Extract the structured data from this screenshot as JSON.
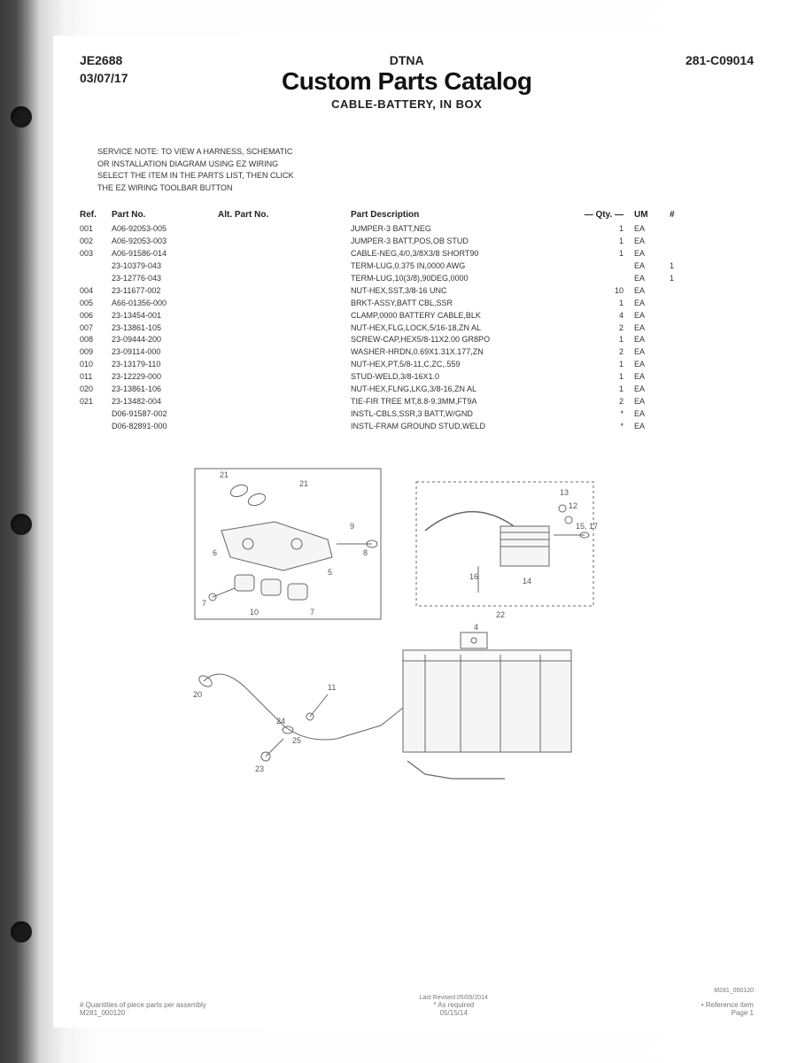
{
  "header": {
    "code_left_top": "JE2688",
    "code_left_bottom": "03/07/17",
    "brand": "DTNA",
    "title": "Custom Parts Catalog",
    "subtitle": "CABLE-BATTERY, IN BOX",
    "code_right": "281-C09014"
  },
  "service_note": [
    "SERVICE NOTE: TO VIEW A HARNESS, SCHEMATIC",
    "OR INSTALLATION DIAGRAM USING EZ WIRING",
    "SELECT THE ITEM IN THE PARTS LIST, THEN CLICK",
    "THE EZ WIRING TOOLBAR BUTTON"
  ],
  "columns": {
    "ref": "Ref.",
    "part": "Part No.",
    "alt": "Alt. Part No.",
    "desc": "Part Description",
    "qty": "— Qty. —",
    "um": "UM",
    "num": "#"
  },
  "rows": [
    {
      "ref": "001",
      "part": "A06-92053-005",
      "desc": "JUMPER-3 BATT,NEG",
      "qty": "1",
      "um": "EA",
      "num": ""
    },
    {
      "ref": "002",
      "part": "A06-92053-003",
      "desc": "JUMPER-3 BATT,POS,OB STUD",
      "qty": "1",
      "um": "EA",
      "num": ""
    },
    {
      "ref": "003",
      "part": "A06-91586-014",
      "desc": "CABLE-NEG,4/0,3/8X3/8 SHORT90",
      "qty": "1",
      "um": "EA",
      "num": ""
    },
    {
      "ref": "",
      "part": "23-10379-043",
      "desc": "TERM-LUG,0.375 IN,0000 AWG",
      "qty": "",
      "um": "EA",
      "num": "1"
    },
    {
      "ref": "",
      "part": "23-12776-043",
      "desc": "TERM-LUG,10(3/8),90DEG,0000",
      "qty": "",
      "um": "EA",
      "num": "1"
    },
    {
      "ref": "004",
      "part": "23-11677-002",
      "desc": "NUT-HEX,SST,3/8-16 UNC",
      "qty": "10",
      "um": "EA",
      "num": ""
    },
    {
      "ref": "005",
      "part": "A66-01356-000",
      "desc": "BRKT-ASSY,BATT CBL,SSR",
      "qty": "1",
      "um": "EA",
      "num": ""
    },
    {
      "ref": "006",
      "part": "23-13454-001",
      "desc": "CLAMP,0000 BATTERY CABLE,BLK",
      "qty": "4",
      "um": "EA",
      "num": ""
    },
    {
      "ref": "007",
      "part": "23-13861-105",
      "desc": "NUT-HEX,FLG,LOCK,5/16-18,ZN AL",
      "qty": "2",
      "um": "EA",
      "num": ""
    },
    {
      "ref": "008",
      "part": "23-09444-200",
      "desc": "SCREW-CAP,HEX5/8-11X2.00 GR8PO",
      "qty": "1",
      "um": "EA",
      "num": ""
    },
    {
      "ref": "009",
      "part": "23-09114-000",
      "desc": "WASHER-HRDN,0.69X1.31X.177,ZN",
      "qty": "2",
      "um": "EA",
      "num": ""
    },
    {
      "ref": "010",
      "part": "23-13179-110",
      "desc": "NUT-HEX,PT,5/8-11,C,ZC,.559",
      "qty": "1",
      "um": "EA",
      "num": ""
    },
    {
      "ref": "011",
      "part": "23-12229-000",
      "desc": "STUD-WELD,3/8-16X1.0",
      "qty": "1",
      "um": "EA",
      "num": ""
    },
    {
      "ref": "020",
      "part": "23-13861-106",
      "desc": "NUT-HEX,FLNG,LKG,3/8-16,ZN AL",
      "qty": "1",
      "um": "EA",
      "num": ""
    },
    {
      "ref": "021",
      "part": "23-13482-004",
      "desc": "TIE-FIR TREE MT,8.8-9.3MM,FT9A",
      "qty": "2",
      "um": "EA",
      "num": ""
    },
    {
      "ref": "",
      "part": "D06-91587-002",
      "desc": "INSTL-CBLS,SSR,3 BATT,W/GND",
      "qty": "*",
      "um": "EA",
      "num": ""
    },
    {
      "ref": "",
      "part": "D06-82891-000",
      "desc": "INSTL-FRAM GROUND STUD,WELD",
      "qty": "*",
      "um": "EA",
      "num": ""
    }
  ],
  "diagram": {
    "stroke": "#666666",
    "fill": "#f0f0f0",
    "text_color": "#555555",
    "callouts_top_left": [
      "21",
      "21",
      "6",
      "7",
      "10",
      "9",
      "8",
      "5",
      "7"
    ],
    "callouts_top_right": [
      "13",
      "12",
      "15, 17",
      "16",
      "14",
      "22"
    ],
    "callouts_bottom": [
      "20",
      "24",
      "25",
      "23",
      "11",
      "4"
    ]
  },
  "footer": {
    "left_line1": "# Quantities of piece parts per assembly",
    "left_line2": "M281_000120",
    "mid_line1": "Last Revised 05/05/2014",
    "mid_line2": "* As required",
    "mid_line3": "05/15/14",
    "right_line0": "M281_000120",
    "right_line1": "• Reference item",
    "right_line2": "Page 1"
  }
}
